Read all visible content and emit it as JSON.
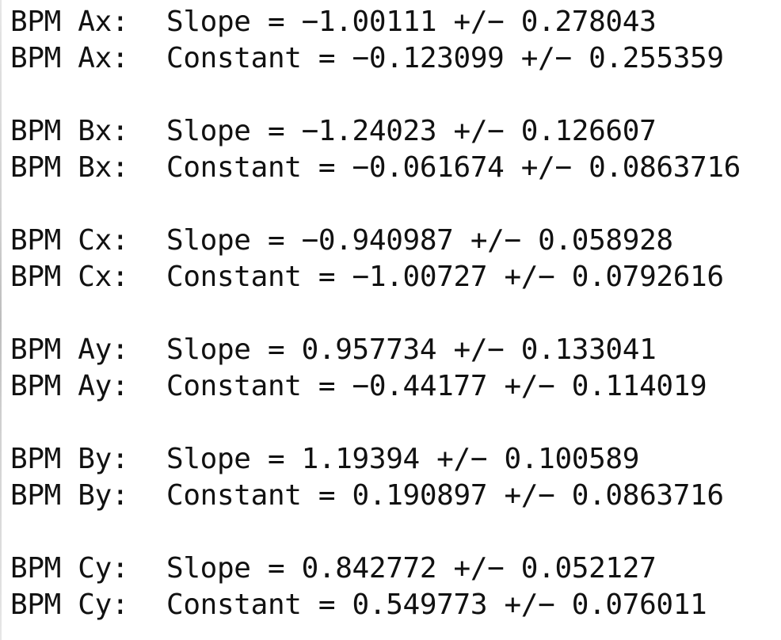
{
  "console_output": {
    "groups": [
      {
        "lines": [
          {
            "prefix": "BPM Ax:",
            "text": "Slope = −1.00111 +/− 0.278043"
          },
          {
            "prefix": "BPM Ax:",
            "text": "Constant = −0.123099 +/− 0.255359"
          }
        ]
      },
      {
        "lines": [
          {
            "prefix": "BPM Bx:",
            "text": "Slope = −1.24023 +/− 0.126607"
          },
          {
            "prefix": "BPM Bx:",
            "text": "Constant = −0.061674 +/− 0.0863716"
          }
        ]
      },
      {
        "lines": [
          {
            "prefix": "BPM Cx:",
            "text": "Slope = −0.940987 +/− 0.058928"
          },
          {
            "prefix": "BPM Cx:",
            "text": "Constant = −1.00727 +/− 0.0792616"
          }
        ]
      },
      {
        "lines": [
          {
            "prefix": "BPM Ay:",
            "text": "Slope = 0.957734 +/− 0.133041"
          },
          {
            "prefix": "BPM Ay:",
            "text": "Constant = −0.44177 +/− 0.114019"
          }
        ]
      },
      {
        "lines": [
          {
            "prefix": "BPM By:",
            "text": "Slope = 1.19394 +/− 0.100589"
          },
          {
            "prefix": "BPM By:",
            "text": "Constant = 0.190897 +/− 0.0863716"
          }
        ]
      },
      {
        "lines": [
          {
            "prefix": "BPM Cy:",
            "text": "Slope = 0.842772 +/− 0.052127"
          },
          {
            "prefix": "BPM Cy:",
            "text": "Constant = 0.549773 +/− 0.076011"
          }
        ]
      }
    ]
  }
}
